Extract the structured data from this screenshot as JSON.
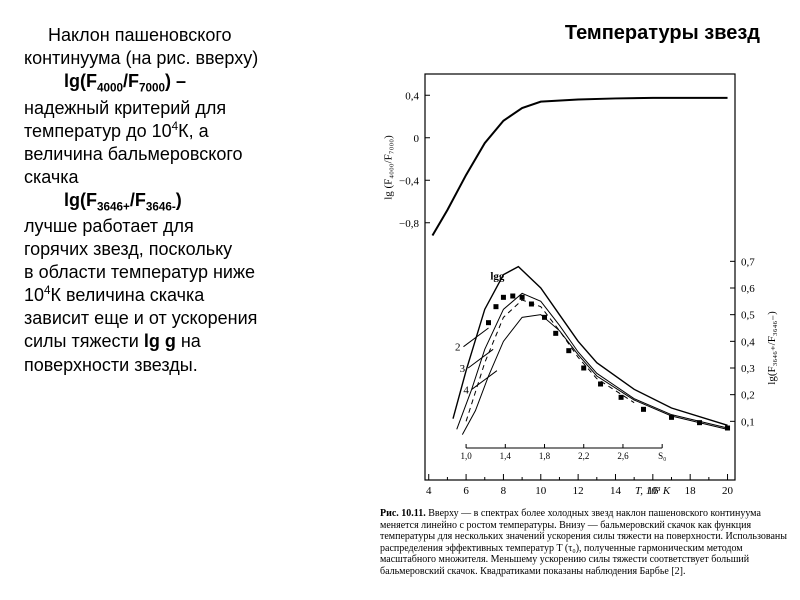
{
  "title_right": "Температуры звезд",
  "text": {
    "p1a": "Наклон пашеновского",
    "p1b": "континуума (на рис. вверху)",
    "f1_pre": "lg(F",
    "f1_s1": "4000",
    "f1_mid": "/F",
    "f1_s2": "7000",
    "f1_post": ") –",
    "p2a": "надежный критерий для",
    "p2b": "температур до 10",
    "p2b_sup": "4",
    "p2b_tail": "К, а",
    "p2c": "величина бальмеровского",
    "p2d": "скачка",
    "f2_pre": "lg(F",
    "f2_s1": "3646+",
    "f2_mid": "/F",
    "f2_s2": "3646-",
    "f2_post": ")",
    "p3a": "лучше работает для",
    "p3b": "горячих звезд, поскольку",
    "p3c": "в области температур ниже",
    "p3d_a": "10",
    "p3d_sup": "4",
    "p3d_b": "К величина скачка",
    "p3e": "зависит еще и от ускорения",
    "p3f_a": "силы тяжести ",
    "p3f_b": "lg g",
    "p3f_c": " на",
    "p3g": "поверхности звезды."
  },
  "caption": {
    "head": "Рис. 10.11.",
    "body": " Вверху — в спектрах более холодных звезд наклон пашеновского континуума меняется линейно с ростом температуры. Внизу — бальмеровский скачок как функция температуры для нескольких значений ускорения силы тяжести на поверхности. Использованы распределения эффективных температур T (τ₀), полученные гармоническим методом масштабного множителя. Меньшему ускорению силы тяжести соответствует больший бальмеровский скачок. Квадратиками показаны наблюдения Барбье [2]."
  },
  "chart": {
    "background": "#ffffff",
    "stroke": "#000000",
    "x_major": [
      4,
      6,
      8,
      10,
      12,
      14,
      16,
      18,
      20
    ],
    "x_minor": [
      5,
      7,
      9,
      11,
      13,
      15,
      17,
      19
    ],
    "x_label": "T, 10³ K",
    "upper": {
      "ylabel": "lg (F₄₀₀₀/F₇₀₀₀)",
      "yticks": [
        {
          "v": 0.4,
          "l": "0,4"
        },
        {
          "v": 0,
          "l": "0"
        },
        {
          "v": -0.4,
          "l": "−0,4"
        },
        {
          "v": -0.8,
          "l": "−0,8"
        }
      ],
      "ylim": [
        -1.0,
        0.6
      ],
      "line": [
        [
          4.2,
          -0.92
        ],
        [
          5,
          -0.68
        ],
        [
          6,
          -0.35
        ],
        [
          7,
          -0.05
        ],
        [
          8,
          0.16
        ],
        [
          9,
          0.28
        ],
        [
          10,
          0.34
        ],
        [
          12,
          0.36
        ],
        [
          14,
          0.37
        ],
        [
          16,
          0.375
        ],
        [
          18,
          0.375
        ],
        [
          20,
          0.375
        ]
      ]
    },
    "lower": {
      "ylabel": "lg(F₃₆₄₆₊/F₃₆₄₆₋)",
      "yticks": [
        {
          "v": 0.7,
          "l": "0,7"
        },
        {
          "v": 0.6,
          "l": "0,6"
        },
        {
          "v": 0.5,
          "l": "0,5"
        },
        {
          "v": 0.4,
          "l": "0,4"
        },
        {
          "v": 0.3,
          "l": "0,3"
        },
        {
          "v": 0.2,
          "l": "0,2"
        },
        {
          "v": 0.1,
          "l": "0,1"
        }
      ],
      "ylim": [
        0.0,
        0.75
      ],
      "inner_x_ticks": [
        {
          "v": 1.0,
          "l": "1,0"
        },
        {
          "v": 1.4,
          "l": "1,4"
        },
        {
          "v": 1.8,
          "l": "1,8"
        },
        {
          "v": 2.2,
          "l": "2,2"
        },
        {
          "v": 2.6,
          "l": "2,6"
        },
        {
          "v": 3.0,
          "l": "S₀"
        }
      ],
      "lgg_label": "lgg",
      "curve_labels": [
        "2",
        "3",
        "4"
      ],
      "curves": {
        "c2": [
          [
            5.3,
            0.11
          ],
          [
            6,
            0.29
          ],
          [
            7,
            0.52
          ],
          [
            8,
            0.65
          ],
          [
            8.8,
            0.68
          ],
          [
            10,
            0.6
          ],
          [
            11,
            0.5
          ],
          [
            12,
            0.4
          ],
          [
            13,
            0.32
          ],
          [
            15,
            0.22
          ],
          [
            17,
            0.15
          ],
          [
            20,
            0.085
          ]
        ],
        "c3": [
          [
            5.5,
            0.07
          ],
          [
            6.3,
            0.22
          ],
          [
            7,
            0.37
          ],
          [
            8,
            0.52
          ],
          [
            9,
            0.58
          ],
          [
            10,
            0.55
          ],
          [
            11,
            0.46
          ],
          [
            12,
            0.36
          ],
          [
            13,
            0.28
          ],
          [
            15,
            0.185
          ],
          [
            17,
            0.125
          ],
          [
            20,
            0.075
          ]
        ],
        "c4": [
          [
            5.8,
            0.05
          ],
          [
            6.5,
            0.14
          ],
          [
            7.2,
            0.27
          ],
          [
            8,
            0.4
          ],
          [
            9,
            0.49
          ],
          [
            10,
            0.5
          ],
          [
            11,
            0.44
          ],
          [
            12,
            0.35
          ],
          [
            13,
            0.27
          ],
          [
            15,
            0.18
          ],
          [
            17,
            0.12
          ],
          [
            20,
            0.07
          ]
        ],
        "cdash": [
          [
            6.0,
            0.1
          ],
          [
            7,
            0.32
          ],
          [
            8,
            0.49
          ],
          [
            9,
            0.555
          ],
          [
            10,
            0.53
          ],
          [
            11,
            0.44
          ],
          [
            12,
            0.34
          ],
          [
            13,
            0.26
          ],
          [
            15,
            0.17
          ]
        ]
      },
      "points": [
        [
          7.2,
          0.47
        ],
        [
          7.6,
          0.53
        ],
        [
          8.0,
          0.565
        ],
        [
          8.5,
          0.57
        ],
        [
          9.0,
          0.565
        ],
        [
          9.5,
          0.54
        ],
        [
          10.2,
          0.49
        ],
        [
          10.8,
          0.43
        ],
        [
          11.5,
          0.365
        ],
        [
          12.3,
          0.3
        ],
        [
          13.2,
          0.24
        ],
        [
          14.3,
          0.19
        ],
        [
          15.5,
          0.145
        ],
        [
          17.0,
          0.115
        ],
        [
          18.5,
          0.095
        ],
        [
          20.0,
          0.075
        ]
      ]
    }
  }
}
